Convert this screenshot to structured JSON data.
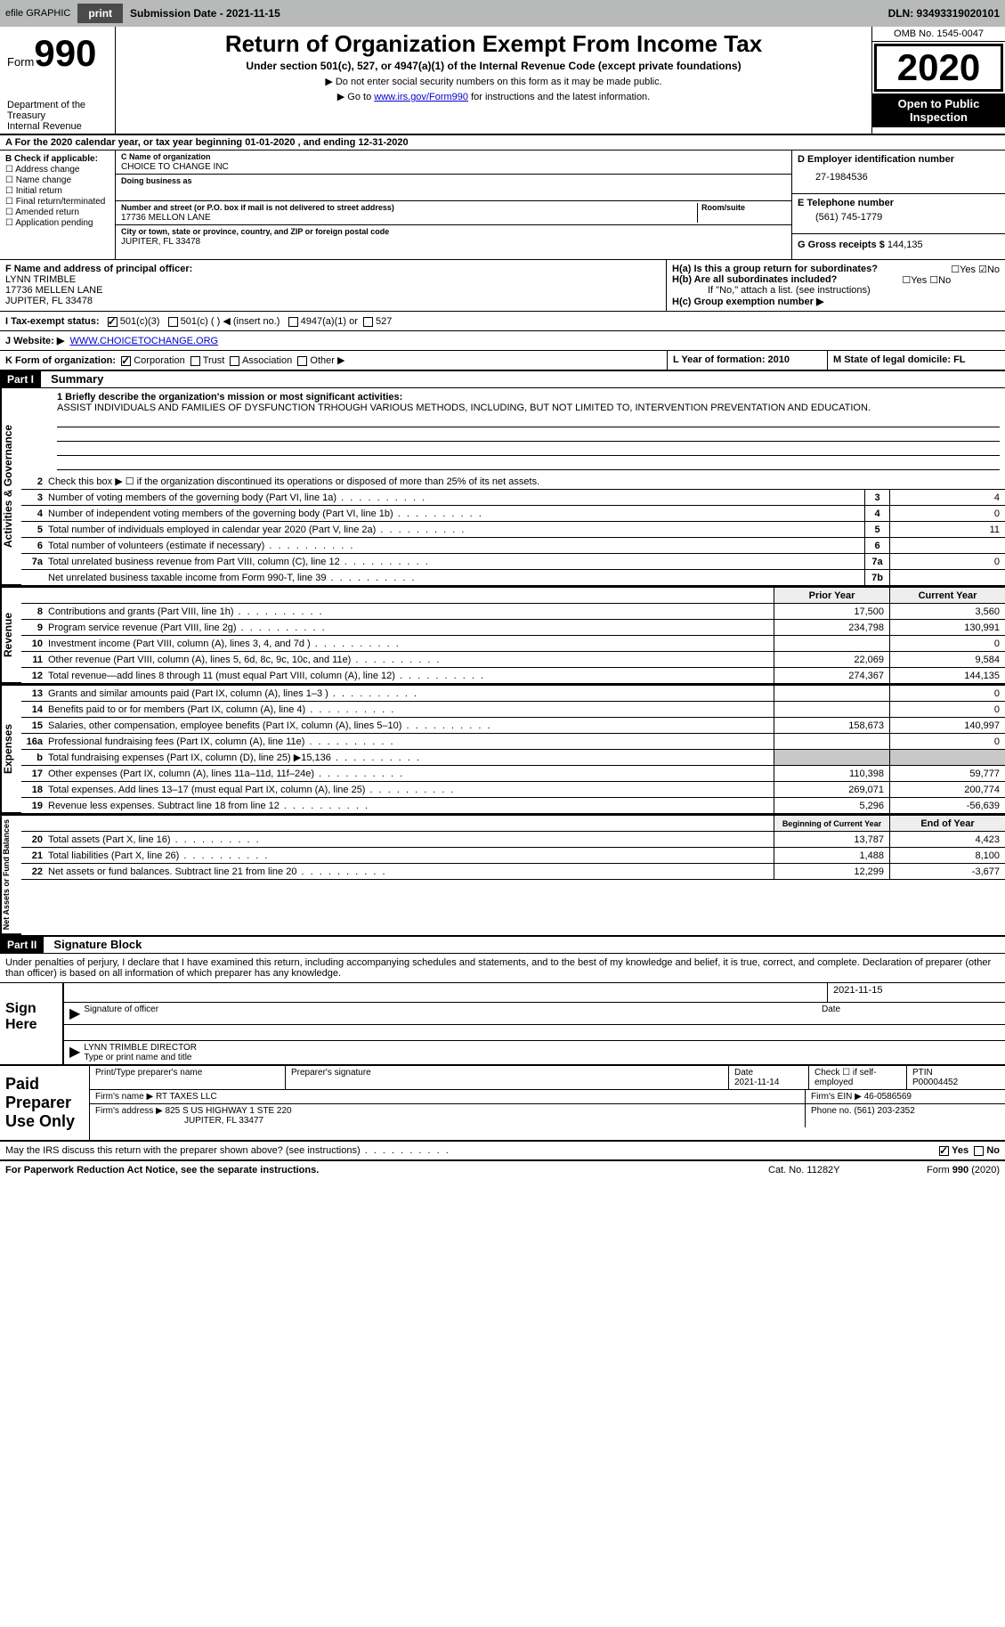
{
  "topbar": {
    "efile_label": "efile GRAPHIC",
    "print_btn": "print",
    "sub_date_label": "Submission Date - 2021-11-15",
    "dln": "DLN: 93493319020101"
  },
  "header": {
    "form_word": "Form",
    "form_num": "990",
    "dept": "Department of the Treasury\nInternal Revenue",
    "title": "Return of Organization Exempt From Income Tax",
    "subtitle": "Under section 501(c), 527, or 4947(a)(1) of the Internal Revenue Code (except private foundations)",
    "line1": "▶ Do not enter social security numbers on this form as it may be made public.",
    "line2_pre": "▶ Go to ",
    "line2_link": "www.irs.gov/Form990",
    "line2_post": " for instructions and the latest information.",
    "omb": "OMB No. 1545-0047",
    "year": "2020",
    "inspect": "Open to Public Inspection"
  },
  "a_year": "A For the 2020 calendar year, or tax year beginning 01-01-2020   , and ending 12-31-2020",
  "b": {
    "label": "B Check if applicable:",
    "opts": [
      "Address change",
      "Name change",
      "Initial return",
      "Final return/terminated",
      "Amended return",
      "Application pending"
    ]
  },
  "c": {
    "name_lbl": "C Name of organization",
    "name": "CHOICE TO CHANGE INC",
    "dba_lbl": "Doing business as",
    "addr_lbl": "Number and street (or P.O. box if mail is not delivered to street address)",
    "room_lbl": "Room/suite",
    "addr": "17736 MELLON LANE",
    "city_lbl": "City or town, state or province, country, and ZIP or foreign postal code",
    "city": "JUPITER, FL  33478"
  },
  "d": {
    "lbl": "D Employer identification number",
    "val": "27-1984536"
  },
  "e": {
    "lbl": "E Telephone number",
    "val": "(561) 745-1779"
  },
  "g": {
    "lbl": "G Gross receipts $",
    "val": "144,135"
  },
  "f": {
    "lbl": "F  Name and address of principal officer:",
    "name": "LYNN TRIMBLE",
    "addr1": "17736 MELLEN LANE",
    "addr2": "JUPITER, FL  33478"
  },
  "h": {
    "a": "H(a)  Is this a group return for subordinates?",
    "b": "H(b)  Are all subordinates included?",
    "note": "If \"No,\" attach a list. (see instructions)",
    "c": "H(c)  Group exemption number ▶"
  },
  "i": {
    "lbl": "I    Tax-exempt status:",
    "o1": "501(c)(3)",
    "o2": "501(c) (  ) ◀ (insert no.)",
    "o3": "4947(a)(1) or",
    "o4": "527"
  },
  "j": {
    "lbl": "J    Website: ▶",
    "val": "WWW.CHOICETOCHANGE.ORG"
  },
  "k": "K Form of organization:",
  "k_opts": [
    "Corporation",
    "Trust",
    "Association",
    "Other ▶"
  ],
  "l": "L Year of formation: 2010",
  "m": "M State of legal domicile: FL",
  "part1": {
    "hdr": "Part I",
    "title": "Summary"
  },
  "mission_lbl": "1  Briefly describe the organization's mission or most significant activities:",
  "mission": "ASSIST INDIVIDUALS AND FAMILIES OF DYSFUNCTION TRHOUGH VARIOUS METHODS, INCLUDING, BUT NOT LIMITED TO, INTERVENTION PREVENTATION AND EDUCATION.",
  "gov_rows": [
    {
      "n": "2",
      "t": "Check this box ▶ ☐  if the organization discontinued its operations or disposed of more than 25% of its net assets."
    },
    {
      "n": "3",
      "t": "Number of voting members of the governing body (Part VI, line 1a)",
      "b": "3",
      "v": "4"
    },
    {
      "n": "4",
      "t": "Number of independent voting members of the governing body (Part VI, line 1b)",
      "b": "4",
      "v": "0"
    },
    {
      "n": "5",
      "t": "Total number of individuals employed in calendar year 2020 (Part V, line 2a)",
      "b": "5",
      "v": "11"
    },
    {
      "n": "6",
      "t": "Total number of volunteers (estimate if necessary)",
      "b": "6",
      "v": ""
    },
    {
      "n": "7a",
      "t": "Total unrelated business revenue from Part VIII, column (C), line 12",
      "b": "7a",
      "v": "0"
    },
    {
      "n": "",
      "t": "Net unrelated business taxable income from Form 990-T, line 39",
      "b": "7b",
      "v": ""
    }
  ],
  "col_hdr": {
    "prior": "Prior Year",
    "current": "Current Year"
  },
  "rev_rows": [
    {
      "n": "8",
      "t": "Contributions and grants (Part VIII, line 1h)",
      "p": "17,500",
      "c": "3,560"
    },
    {
      "n": "9",
      "t": "Program service revenue (Part VIII, line 2g)",
      "p": "234,798",
      "c": "130,991"
    },
    {
      "n": "10",
      "t": "Investment income (Part VIII, column (A), lines 3, 4, and 7d )",
      "p": "",
      "c": "0"
    },
    {
      "n": "11",
      "t": "Other revenue (Part VIII, column (A), lines 5, 6d, 8c, 9c, 10c, and 11e)",
      "p": "22,069",
      "c": "9,584"
    },
    {
      "n": "12",
      "t": "Total revenue—add lines 8 through 11 (must equal Part VIII, column (A), line 12)",
      "p": "274,367",
      "c": "144,135"
    }
  ],
  "exp_rows": [
    {
      "n": "13",
      "t": "Grants and similar amounts paid (Part IX, column (A), lines 1–3 )",
      "p": "",
      "c": "0"
    },
    {
      "n": "14",
      "t": "Benefits paid to or for members (Part IX, column (A), line 4)",
      "p": "",
      "c": "0"
    },
    {
      "n": "15",
      "t": "Salaries, other compensation, employee benefits (Part IX, column (A), lines 5–10)",
      "p": "158,673",
      "c": "140,997"
    },
    {
      "n": "16a",
      "t": "Professional fundraising fees (Part IX, column (A), line 11e)",
      "p": "",
      "c": "0"
    },
    {
      "n": "b",
      "t": "Total fundraising expenses (Part IX, column (D), line 25) ▶15,136",
      "p": "grey",
      "c": "grey"
    },
    {
      "n": "17",
      "t": "Other expenses (Part IX, column (A), lines 11a–11d, 11f–24e)",
      "p": "110,398",
      "c": "59,777"
    },
    {
      "n": "18",
      "t": "Total expenses. Add lines 13–17 (must equal Part IX, column (A), line 25)",
      "p": "269,071",
      "c": "200,774"
    },
    {
      "n": "19",
      "t": "Revenue less expenses. Subtract line 18 from line 12",
      "p": "5,296",
      "c": "-56,639"
    }
  ],
  "na_hdr": {
    "beg": "Beginning of Current Year",
    "end": "End of Year"
  },
  "na_rows": [
    {
      "n": "20",
      "t": "Total assets (Part X, line 16)",
      "p": "13,787",
      "c": "4,423"
    },
    {
      "n": "21",
      "t": "Total liabilities (Part X, line 26)",
      "p": "1,488",
      "c": "8,100"
    },
    {
      "n": "22",
      "t": "Net assets or fund balances. Subtract line 21 from line 20",
      "p": "12,299",
      "c": "-3,677"
    }
  ],
  "part2": {
    "hdr": "Part II",
    "title": "Signature Block"
  },
  "sig_intro": "Under penalties of perjury, I declare that I have examined this return, including accompanying schedules and statements, and to the best of my knowledge and belief, it is true, correct, and complete. Declaration of preparer (other than officer) is based on all information of which preparer has any knowledge.",
  "sign": {
    "here": "Sign Here",
    "sig_lbl": "Signature of officer",
    "date": "2021-11-15",
    "date_lbl": "Date",
    "name": "LYNN TRIMBLE  DIRECTOR",
    "name_lbl": "Type or print name and title"
  },
  "paid": {
    "lab": "Paid Preparer Use Only",
    "h1": "Print/Type preparer's name",
    "h2": "Preparer's signature",
    "h3": "Date",
    "date": "2021-11-14",
    "h4": "Check ☐ if self-employed",
    "h5": "PTIN",
    "ptin": "P00004452",
    "firm_lbl": "Firm's name    ▶",
    "firm": "RT TAXES LLC",
    "ein_lbl": "Firm's EIN ▶",
    "ein": "46-0586569",
    "addr_lbl": "Firm's address ▶",
    "addr": "825 S US HIGHWAY 1 STE 220",
    "addr2": "JUPITER, FL  33477",
    "phone_lbl": "Phone no.",
    "phone": "(561) 203-2352"
  },
  "discuss": "May the IRS discuss this return with the preparer shown above? (see instructions)",
  "footer": {
    "l": "For Paperwork Reduction Act Notice, see the separate instructions.",
    "m": "Cat. No. 11282Y",
    "r": "Form 990 (2020)"
  },
  "vtabs": {
    "gov": "Activities & Governance",
    "rev": "Revenue",
    "exp": "Expenses",
    "na": "Net Assets or Fund Balances"
  },
  "yesno": {
    "yes": "Yes",
    "no": "No"
  }
}
